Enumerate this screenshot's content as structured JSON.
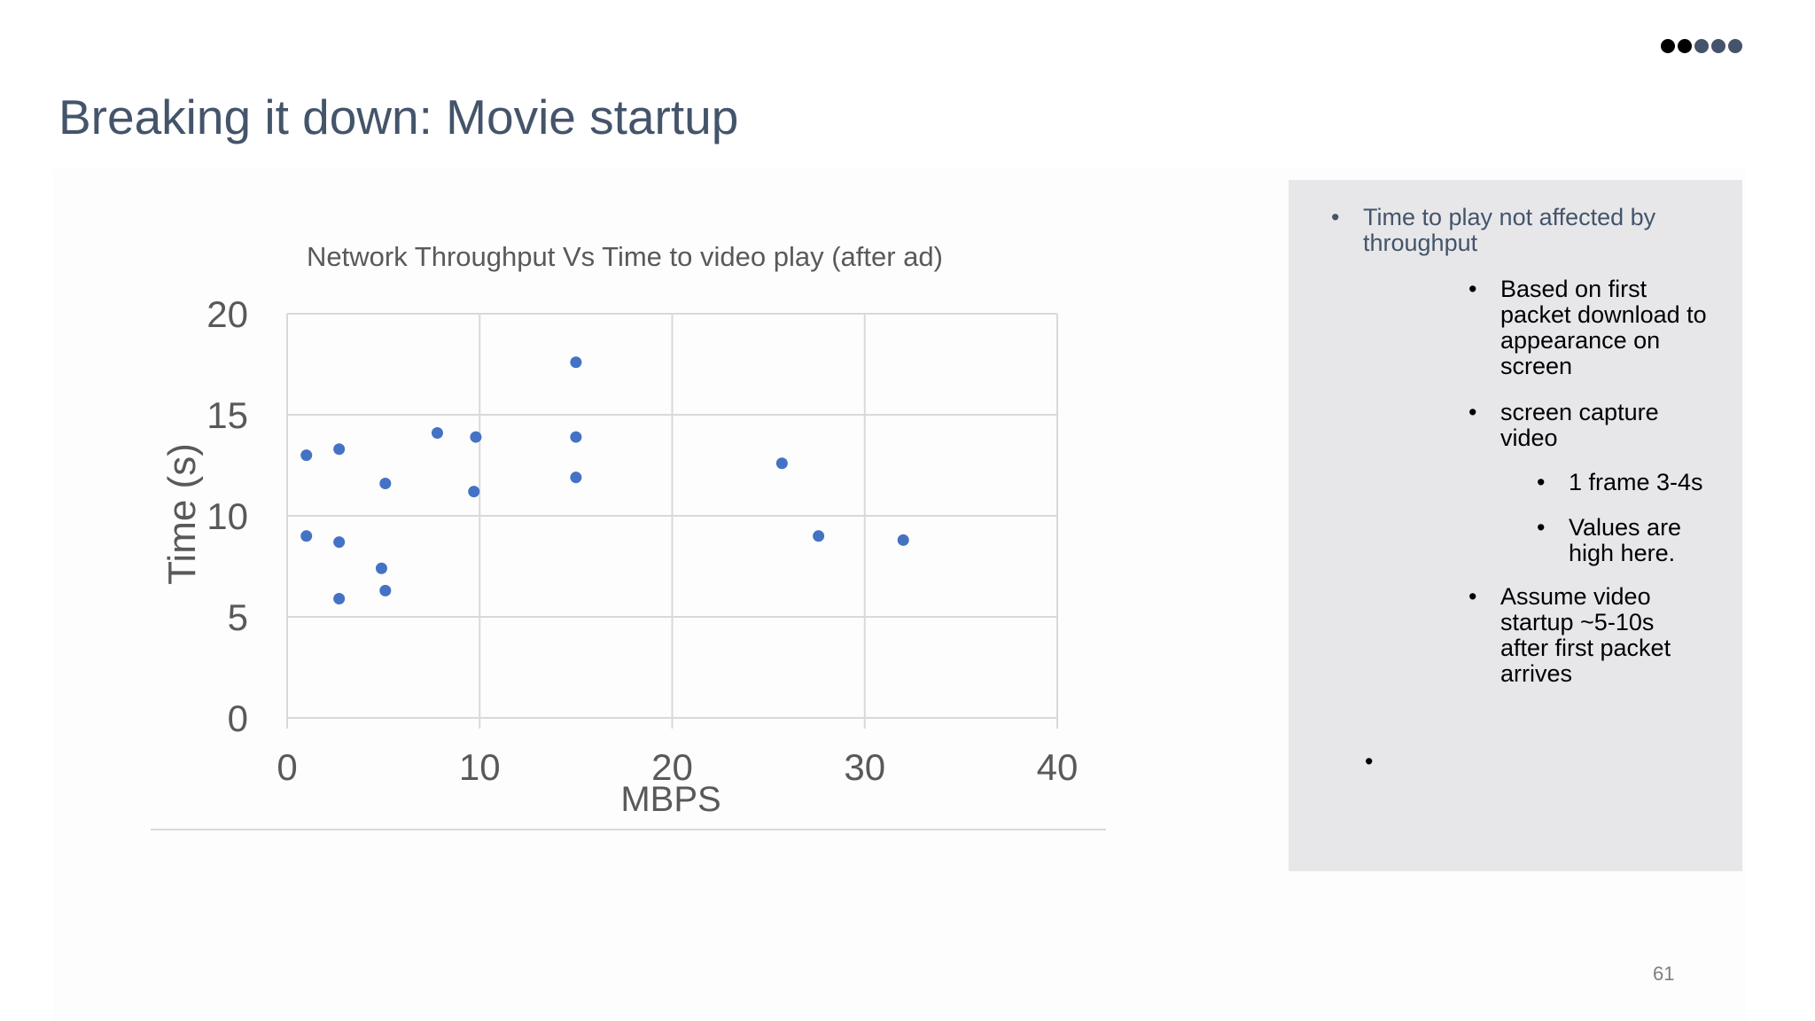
{
  "slide": {
    "title": "Breaking it down: Movie startup",
    "page_number": "61",
    "nav_dots": [
      "#000000",
      "#000000",
      "#44546a",
      "#44546a",
      "#44546a"
    ]
  },
  "notes": {
    "b1": "Time to play not affected by throughput",
    "b2": "Based on first packet download to appearance on screen",
    "b3": "screen capture video",
    "b4": "1 frame 3-4s",
    "b5": "Values are high here.",
    "b6": "Assume video startup ~5-10s after first packet arrives",
    "bullet_char": "•"
  },
  "colors": {
    "title": "#44546a",
    "marker": "#4472c4",
    "grid": "#d9d9d9",
    "panel": "#e7e7ea"
  },
  "chart_data": {
    "type": "scatter",
    "title": "Network Throughput Vs Time to video play (after ad)",
    "xlabel": "MBPS",
    "ylabel": "Time (s)",
    "xlim": [
      0,
      40
    ],
    "ylim": [
      0,
      20
    ],
    "xticks": [
      0,
      10,
      20,
      30,
      40
    ],
    "yticks": [
      0,
      5,
      10,
      15,
      20
    ],
    "grid": true,
    "legend": "none",
    "series": [
      {
        "points": [
          [
            1,
            13.0
          ],
          [
            1,
            9.0
          ],
          [
            2.7,
            13.3
          ],
          [
            2.7,
            8.7
          ],
          [
            2.7,
            5.9
          ],
          [
            5.1,
            11.6
          ],
          [
            4.9,
            7.4
          ],
          [
            5.1,
            6.3
          ],
          [
            7.8,
            14.1
          ],
          [
            9.8,
            13.9
          ],
          [
            9.7,
            11.2
          ],
          [
            15,
            17.6
          ],
          [
            15,
            13.9
          ],
          [
            15,
            11.9
          ],
          [
            25.7,
            12.6
          ],
          [
            27.6,
            9.0
          ],
          [
            32,
            8.8
          ]
        ]
      }
    ]
  }
}
